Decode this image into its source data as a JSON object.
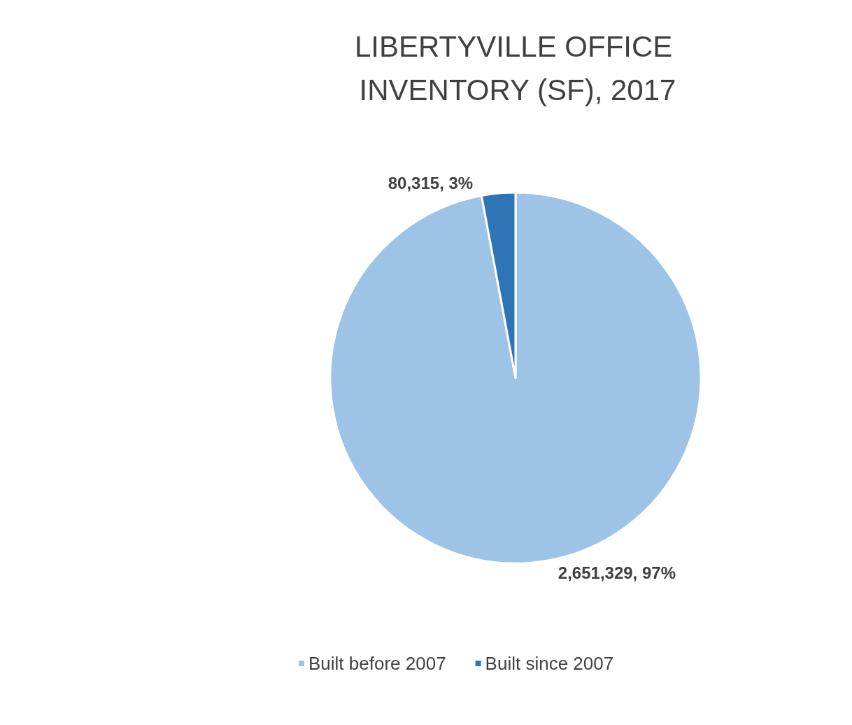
{
  "chart_data": {
    "type": "pie",
    "title": "LIBERTYVILLE OFFICE INVENTORY (SF), 2017",
    "categories": [
      "Built before 2007",
      "Built since 2007"
    ],
    "values": [
      2651329,
      80315
    ],
    "colors": [
      "#9dc3e6",
      "#2e75b6"
    ],
    "value_labels": [
      "2,651,329, 97%",
      "80,315, 3%"
    ],
    "legend": "bottom"
  }
}
